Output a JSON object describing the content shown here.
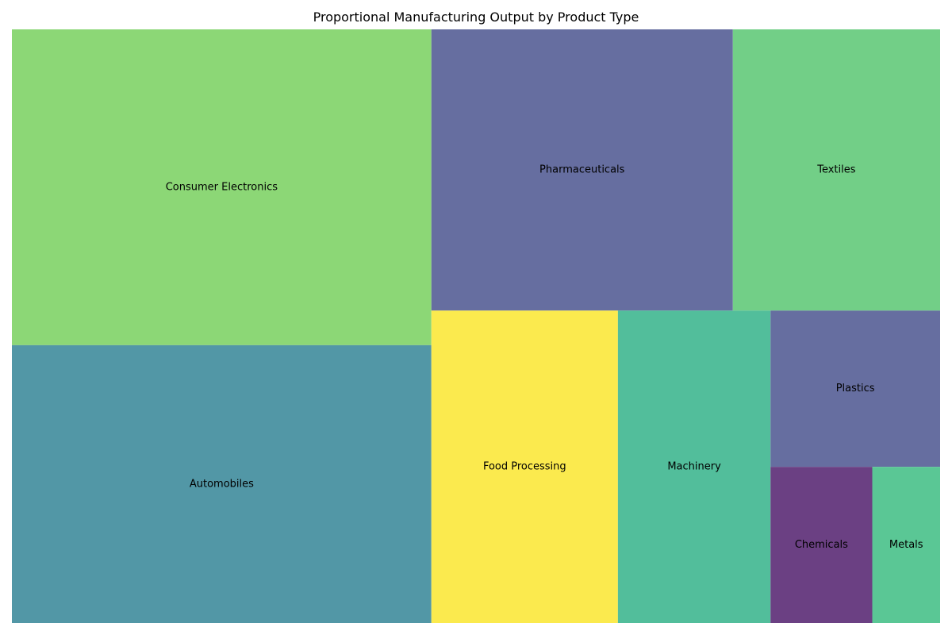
{
  "chart_data": {
    "type": "treemap",
    "title": "Proportional Manufacturing Output by Product Type",
    "items": [
      {
        "label": "Consumer Electronics",
        "value": 25,
        "color": "#8cd776"
      },
      {
        "label": "Automobiles",
        "value": 22,
        "color": "#5297a6"
      },
      {
        "label": "Pharmaceuticals",
        "value": 16,
        "color": "#666ea0"
      },
      {
        "label": "Textiles",
        "value": 11,
        "color": "#72cf87"
      },
      {
        "label": "Food Processing",
        "value": 11,
        "color": "#fbea4e"
      },
      {
        "label": "Machinery",
        "value": 9,
        "color": "#52be9b"
      },
      {
        "label": "Plastics",
        "value": 5,
        "color": "#666ea0"
      },
      {
        "label": "Chemicals",
        "value": 3,
        "color": "#6b4083"
      },
      {
        "label": "Metals",
        "value": 2,
        "color": "#5ac795"
      }
    ]
  }
}
